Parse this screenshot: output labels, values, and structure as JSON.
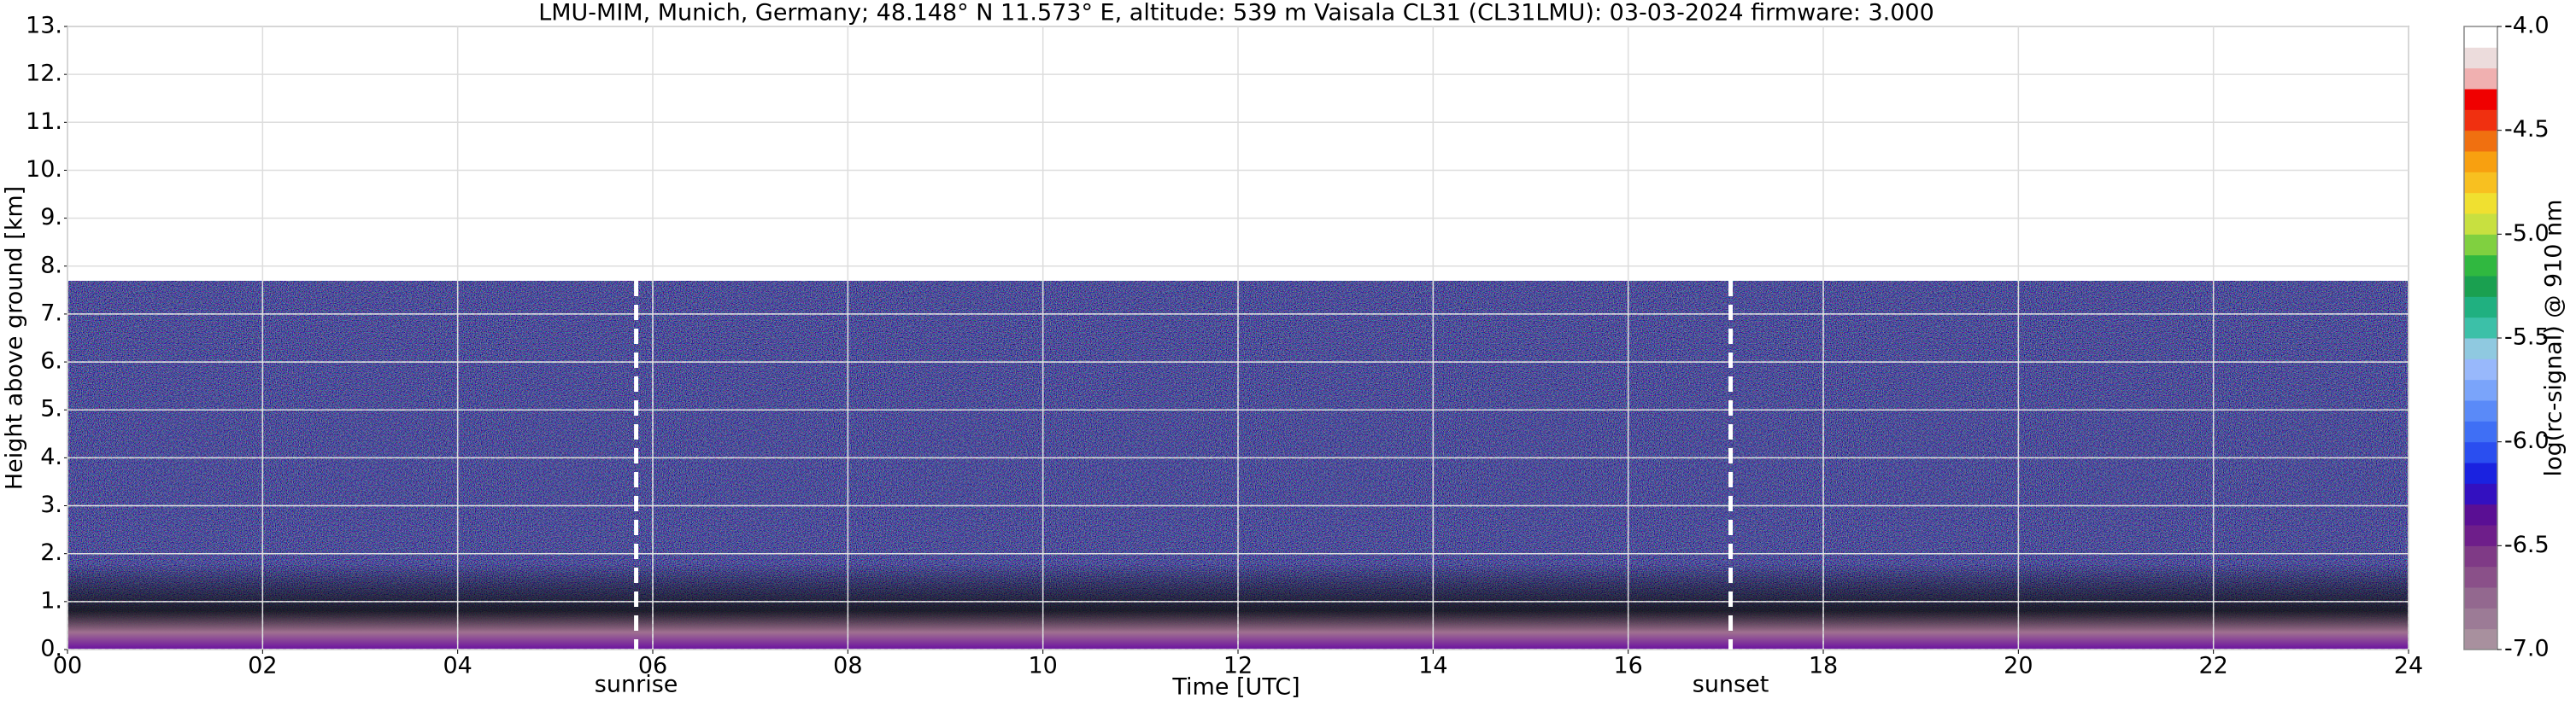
{
  "chart_data": {
    "type": "heatmap",
    "title": "LMU-MIM, Munich, Germany; 48.148° N 11.573° E, altitude: 539 m    Vaisala CL31 (CL31LMU): 03-03-2024    firmware: 3.000",
    "x_label": "Time [UTC]",
    "y_label": "Height above ground [km]",
    "xlim": [
      0,
      24
    ],
    "xticks": [
      {
        "value": 0,
        "label": "00"
      },
      {
        "value": 2,
        "label": "02"
      },
      {
        "value": 4,
        "label": "04"
      },
      {
        "value": 6,
        "label": "06"
      },
      {
        "value": 8,
        "label": "08"
      },
      {
        "value": 10,
        "label": "10"
      },
      {
        "value": 12,
        "label": "12"
      },
      {
        "value": 14,
        "label": "14"
      },
      {
        "value": 16,
        "label": "16"
      },
      {
        "value": 18,
        "label": "18"
      },
      {
        "value": 20,
        "label": "20"
      },
      {
        "value": 22,
        "label": "22"
      },
      {
        "value": 24,
        "label": "24"
      }
    ],
    "ylim": [
      0,
      13
    ],
    "yticks": [
      {
        "value": 0,
        "label": "0."
      },
      {
        "value": 1,
        "label": "1."
      },
      {
        "value": 2,
        "label": "2."
      },
      {
        "value": 3,
        "label": "3."
      },
      {
        "value": 4,
        "label": "4."
      },
      {
        "value": 5,
        "label": "5."
      },
      {
        "value": 6,
        "label": "6."
      },
      {
        "value": 7,
        "label": "7."
      },
      {
        "value": 8,
        "label": "8."
      },
      {
        "value": 9,
        "label": "9."
      },
      {
        "value": 10,
        "label": "10."
      },
      {
        "value": 11,
        "label": "11."
      },
      {
        "value": 12,
        "label": "12."
      },
      {
        "value": 13,
        "label": "13."
      }
    ],
    "grid": true,
    "annotations": [
      {
        "label": "sunrise",
        "x": 5.83
      },
      {
        "label": "sunset",
        "x": 17.05
      }
    ],
    "colorbar": {
      "label": "log(rc-signal) @ 910 nm",
      "clim": [
        -7,
        -4
      ],
      "ticks": [
        {
          "value": -7,
          "label": "-7.0"
        },
        -6.5,
        {
          "value": -6,
          "label": "-6.0"
        },
        -5.5,
        {
          "value": -5,
          "label": "-5.0"
        },
        -4.5,
        {
          "value": -4,
          "label": "-4.0"
        }
      ],
      "colors": [
        "#a8909e",
        "#9c7b96",
        "#93688f",
        "#8a5089",
        "#7f3a86",
        "#6e1e8a",
        "#5a0f94",
        "#3310c0",
        "#1a22e0",
        "#2a4ef0",
        "#3f6ff5",
        "#5a8af8",
        "#7aa4fa",
        "#98b8fb",
        "#8fc9e0",
        "#3cc0a8",
        "#20b080",
        "#1aa050",
        "#30b840",
        "#80d040",
        "#c8e040",
        "#f0e030",
        "#f8c020",
        "#f8a010",
        "#f07010",
        "#f03010",
        "#f00000",
        "#f0b0b0",
        "#ecdcdc",
        "#ffffff"
      ]
    }
  }
}
